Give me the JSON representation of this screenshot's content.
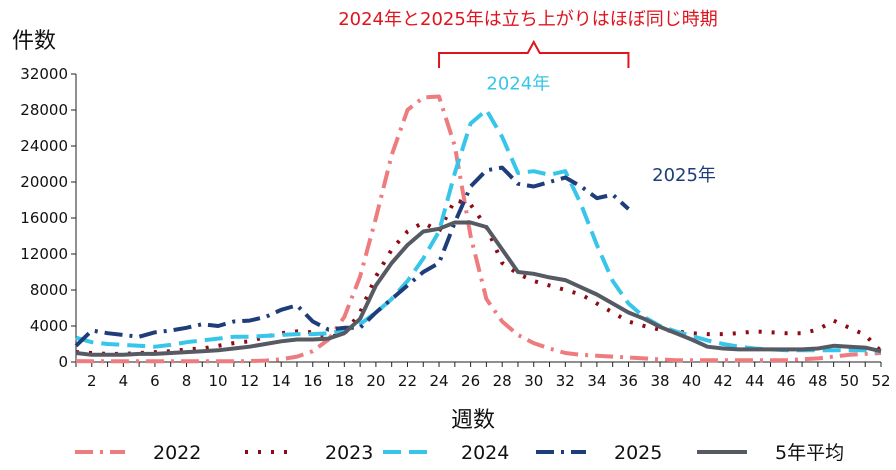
{
  "chart_data": {
    "type": "line",
    "title": "",
    "ylabel": "件数",
    "xlabel": "週数",
    "ylim": [
      0,
      32000
    ],
    "xlim": [
      1,
      52
    ],
    "yticks": [
      0,
      4000,
      8000,
      12000,
      16000,
      20000,
      24000,
      28000,
      32000
    ],
    "xticks": [
      2,
      4,
      6,
      8,
      10,
      12,
      14,
      16,
      18,
      20,
      22,
      24,
      26,
      28,
      30,
      32,
      34,
      36,
      38,
      40,
      42,
      44,
      46,
      48,
      50,
      52
    ],
    "legend_position": "bottom",
    "annotation_title": "2024年と2025年は立ち上がりはほぼ同じ時期",
    "bracket_weeks": [
      24,
      36
    ],
    "series_labels": [
      {
        "text": "2024年",
        "week": 27,
        "value": 30300,
        "color": "#38c5ea"
      },
      {
        "text": "2025年",
        "week": 37.5,
        "value": 20100,
        "color": "#1f3d7a"
      }
    ],
    "series": [
      {
        "name": "2022",
        "color": "#ee7c7f",
        "dash": "18,7,3,7",
        "x": [
          1,
          2,
          3,
          4,
          5,
          6,
          7,
          8,
          9,
          10,
          11,
          12,
          13,
          14,
          15,
          16,
          17,
          18,
          19,
          20,
          21,
          22,
          23,
          24,
          25,
          26,
          27,
          28,
          29,
          30,
          31,
          32,
          33,
          34,
          35,
          36,
          37,
          38,
          39,
          40,
          41,
          42,
          43,
          44,
          45,
          46,
          47,
          48,
          49,
          50,
          51,
          52
        ],
        "values": [
          100,
          80,
          80,
          80,
          80,
          80,
          80,
          80,
          80,
          80,
          80,
          100,
          150,
          300,
          600,
          1200,
          2500,
          5000,
          9500,
          16000,
          23000,
          28000,
          29400,
          29500,
          24000,
          14000,
          7000,
          4500,
          3000,
          2100,
          1500,
          1000,
          800,
          700,
          600,
          500,
          400,
          300,
          200,
          200,
          200,
          200,
          200,
          200,
          200,
          200,
          300,
          400,
          600,
          800,
          900,
          1000
        ]
      },
      {
        "name": "2023",
        "color": "#8e0a14",
        "dash": "3,10",
        "x": [
          1,
          2,
          3,
          4,
          5,
          6,
          7,
          8,
          9,
          10,
          11,
          12,
          13,
          14,
          15,
          16,
          17,
          18,
          19,
          20,
          21,
          22,
          23,
          24,
          25,
          26,
          27,
          28,
          29,
          30,
          31,
          32,
          33,
          34,
          35,
          36,
          37,
          38,
          39,
          40,
          41,
          42,
          43,
          44,
          45,
          46,
          47,
          48,
          49,
          50,
          51,
          52
        ],
        "values": [
          1100,
          1000,
          900,
          900,
          1000,
          1100,
          1200,
          1400,
          1500,
          1800,
          2100,
          2300,
          2800,
          3200,
          3400,
          3300,
          2800,
          3100,
          5500,
          9500,
          12500,
          14500,
          15500,
          14500,
          18000,
          17500,
          15000,
          11000,
          9800,
          9000,
          8500,
          8000,
          7500,
          6500,
          5500,
          4500,
          4000,
          3600,
          3400,
          3200,
          3100,
          3100,
          3200,
          3400,
          3300,
          3200,
          3200,
          3600,
          4600,
          3800,
          3000,
          1200
        ]
      },
      {
        "name": "2024",
        "color": "#38c5ea",
        "dash": "18,8",
        "x": [
          1,
          2,
          3,
          4,
          5,
          6,
          7,
          8,
          9,
          10,
          11,
          12,
          13,
          14,
          15,
          16,
          17,
          18,
          19,
          20,
          21,
          22,
          23,
          24,
          25,
          26,
          27,
          28,
          29,
          30,
          31,
          32,
          33,
          34,
          35,
          36,
          37,
          38,
          39,
          40,
          41,
          42,
          43,
          44,
          45,
          46,
          47,
          48,
          49,
          50,
          51,
          52
        ],
        "values": [
          2700,
          2200,
          2000,
          1900,
          1800,
          1700,
          1900,
          2200,
          2400,
          2600,
          2800,
          2800,
          2900,
          3000,
          3100,
          3100,
          3200,
          3500,
          4200,
          5500,
          7000,
          9000,
          11500,
          14500,
          21000,
          26500,
          28000,
          25000,
          21000,
          21200,
          20800,
          21200,
          17500,
          13000,
          9000,
          6500,
          5000,
          4000,
          3400,
          2900,
          2400,
          2000,
          1700,
          1500,
          1400,
          1300,
          1300,
          1300,
          1300,
          1300,
          1300,
          1200
        ]
      },
      {
        "name": "2025",
        "color": "#1f3d7a",
        "dash": "18,7,3,7",
        "x": [
          1,
          2,
          3,
          4,
          5,
          6,
          7,
          8,
          9,
          10,
          11,
          12,
          13,
          14,
          15,
          16,
          17,
          18,
          19,
          20,
          21,
          22,
          23,
          24,
          25,
          26,
          27,
          28,
          29,
          30,
          31,
          32,
          33,
          34,
          35,
          36
        ],
        "values": [
          1800,
          3500,
          3200,
          3000,
          2800,
          3300,
          3500,
          3800,
          4200,
          4000,
          4500,
          4600,
          5000,
          5800,
          6300,
          4500,
          3600,
          3800,
          3800,
          5500,
          7000,
          8500,
          10000,
          11000,
          15500,
          19500,
          21300,
          21600,
          19800,
          19500,
          20000,
          20500,
          19500,
          18200,
          18600,
          17000
        ]
      },
      {
        "name": "5年平均",
        "color": "#555a63",
        "dash": "",
        "x": [
          1,
          2,
          3,
          4,
          5,
          6,
          7,
          8,
          9,
          10,
          11,
          12,
          13,
          14,
          15,
          16,
          17,
          18,
          19,
          20,
          21,
          22,
          23,
          24,
          25,
          26,
          27,
          28,
          29,
          30,
          31,
          32,
          33,
          34,
          35,
          36,
          37,
          38,
          39,
          40,
          41,
          42,
          43,
          44,
          45,
          46,
          47,
          48,
          49,
          50,
          51,
          52
        ],
        "values": [
          1000,
          800,
          800,
          800,
          900,
          900,
          1000,
          1100,
          1200,
          1300,
          1500,
          1700,
          2000,
          2300,
          2500,
          2500,
          2600,
          3200,
          4800,
          8500,
          11000,
          13000,
          14500,
          14800,
          15500,
          15500,
          15000,
          12500,
          10000,
          9800,
          9400,
          9100,
          8300,
          7500,
          6500,
          5500,
          4800,
          3900,
          3200,
          2500,
          1700,
          1500,
          1400,
          1400,
          1400,
          1400,
          1400,
          1500,
          1800,
          1700,
          1600,
          1200
        ]
      }
    ]
  }
}
